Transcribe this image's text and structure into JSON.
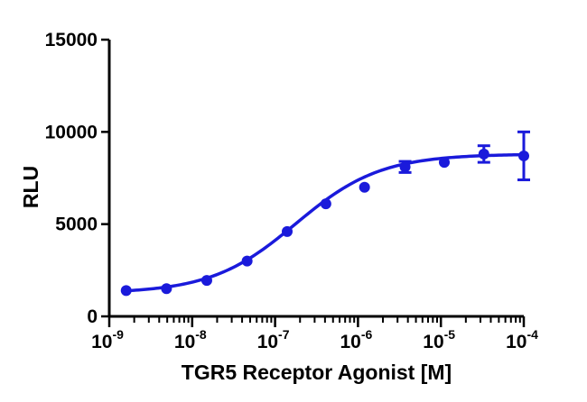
{
  "chart_data": {
    "type": "scatter",
    "title": "",
    "xlabel": "TGR5 Receptor Agonist [M]",
    "ylabel": "RLU",
    "x_scale": "log",
    "xlim": [
      1e-09,
      0.0001
    ],
    "ylim": [
      0,
      15000
    ],
    "x_ticks": [
      {
        "value": 1e-09,
        "base": "10",
        "exp": "-9"
      },
      {
        "value": 1e-08,
        "base": "10",
        "exp": "-8"
      },
      {
        "value": 1e-07,
        "base": "10",
        "exp": "-7"
      },
      {
        "value": 1e-06,
        "base": "10",
        "exp": "-6"
      },
      {
        "value": 1e-05,
        "base": "10",
        "exp": "-5"
      },
      {
        "value": 0.0001,
        "base": "10",
        "exp": "-4"
      }
    ],
    "y_ticks": [
      {
        "value": 0,
        "label": "0"
      },
      {
        "value": 5000,
        "label": "5000"
      },
      {
        "value": 10000,
        "label": "10000"
      },
      {
        "value": 15000,
        "label": "15000"
      }
    ],
    "grid": false,
    "legend": "none",
    "series": [
      {
        "color": "#1a1adb",
        "points": [
          {
            "x": 1.6e-09,
            "y": 1400,
            "err": 0
          },
          {
            "x": 4.9e-09,
            "y": 1500,
            "err": 0
          },
          {
            "x": 1.5e-08,
            "y": 1950,
            "err": 0
          },
          {
            "x": 4.6e-08,
            "y": 3000,
            "err": 0
          },
          {
            "x": 1.4e-07,
            "y": 4600,
            "err": 0
          },
          {
            "x": 4.1e-07,
            "y": 6100,
            "err": 0
          },
          {
            "x": 1.2e-06,
            "y": 7000,
            "err": 0
          },
          {
            "x": 3.7e-06,
            "y": 8100,
            "err": 300
          },
          {
            "x": 1.1e-05,
            "y": 8350,
            "err": 0
          },
          {
            "x": 3.3e-05,
            "y": 8800,
            "err": 450
          },
          {
            "x": 0.0001,
            "y": 8700,
            "err": 1300
          }
        ],
        "fit": {
          "model": "four-parameter logistic",
          "bottom": 1250,
          "top": 8800,
          "logEC50": -6.75,
          "hill": 0.85
        }
      }
    ]
  }
}
